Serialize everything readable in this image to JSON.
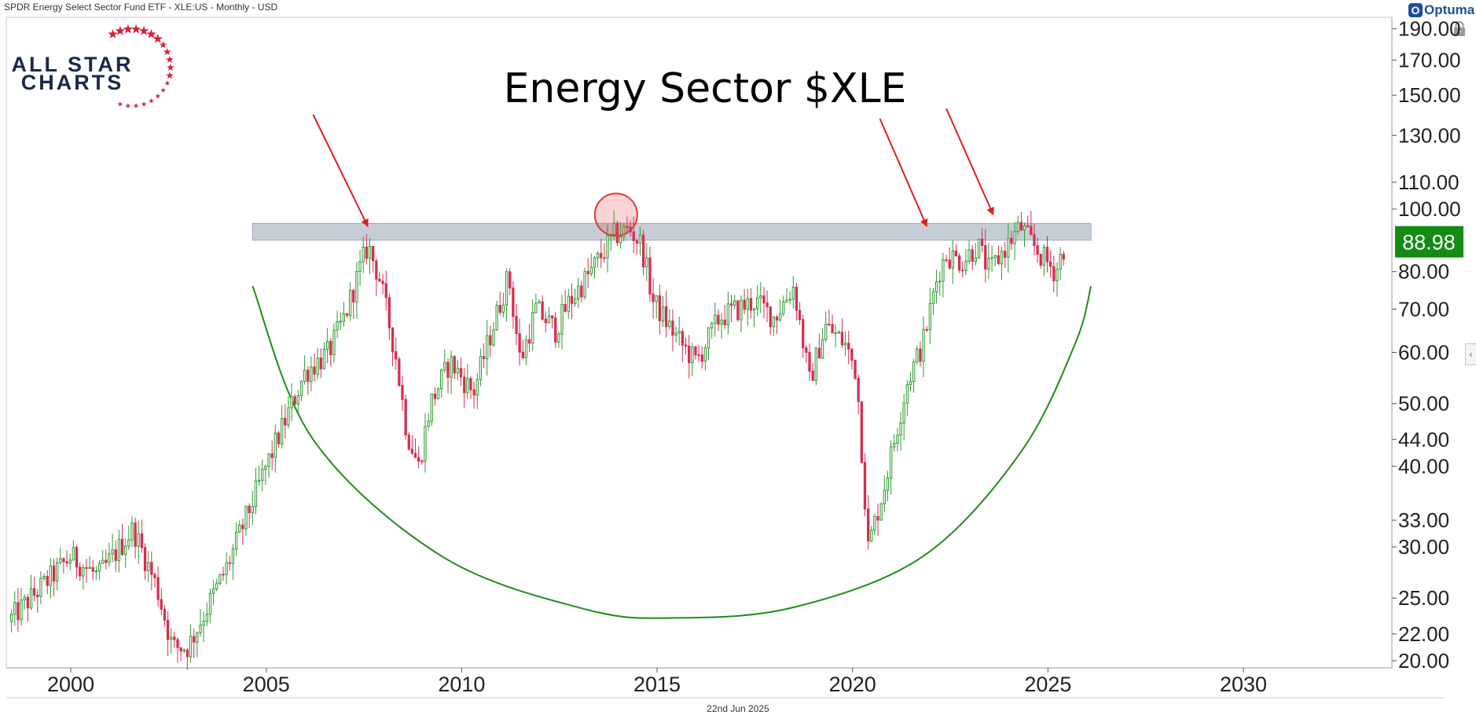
{
  "header": {
    "title": "SPDR Energy Select Sector Fund ETF - XLE:US - Monthly - USD"
  },
  "brand": {
    "optuma_mark": "O",
    "optuma_word": "Optuma",
    "optuma_color": "#1f4e9a",
    "logo_line1": "ALL STAR",
    "logo_line2": "CHARTS",
    "logo_text_color": "#1a2a4a",
    "logo_star_color": "#d9213a"
  },
  "icons": {
    "lock": "lock-icon",
    "collapse": "chevron-left-icon",
    "collapse_glyph": "‹"
  },
  "footer": {
    "date": "22nd Jun 2025"
  },
  "chart_data": {
    "type": "candlestick",
    "title": "Energy Sector $XLE",
    "xlabel": "",
    "ylabel": "",
    "y_scale": "log",
    "ylim": [
      19.5,
      198
    ],
    "xlim": [
      1998.35,
      2033.8
    ],
    "x_ticks": [
      2000,
      2005,
      2010,
      2015,
      2020,
      2025,
      2030
    ],
    "y_ticks": [
      20,
      22,
      25,
      30,
      33,
      40,
      44,
      50,
      60,
      70,
      80,
      100,
      110,
      130,
      150,
      170,
      190
    ],
    "y_tick_labels": [
      "20.00",
      "22.00",
      "25.00",
      "30.00",
      "33.00",
      "40.00",
      "44.00",
      "50.00",
      "60.00",
      "70.00",
      "80.00",
      "100.00",
      "110.00",
      "130.00",
      "150.00",
      "170.00",
      "190.00"
    ],
    "last_price": 88.98,
    "last_price_label": "88.98",
    "up_color": "#2e9a2e",
    "down_color": "#d62d52",
    "last_price_color": "#148c14",
    "resistance_zone": {
      "x_start": 2004.65,
      "x_end": 2026.1,
      "y_low": 89.5,
      "y_high": 95,
      "color": "#b4bcc8"
    },
    "highlight_circle": {
      "x": 2013.95,
      "y": 98,
      "color": "#e03a3a"
    },
    "arrows": [
      {
        "from": [
          2006.2,
          140
        ],
        "to": [
          2007.6,
          94
        ]
      },
      {
        "from": [
          2020.7,
          138
        ],
        "to": [
          2021.9,
          94
        ]
      },
      {
        "from": [
          2022.4,
          143
        ],
        "to": [
          2023.6,
          98
        ]
      }
    ],
    "arrow_color": "#e01e1e",
    "saucer_curve": {
      "points": [
        [
          2004.65,
          76
        ],
        [
          2006.2,
          44
        ],
        [
          2009.5,
          29
        ],
        [
          2013.2,
          24
        ],
        [
          2015.5,
          23.3
        ],
        [
          2018.5,
          24.2
        ],
        [
          2021.8,
          29
        ],
        [
          2024.3,
          42
        ],
        [
          2025.7,
          62
        ],
        [
          2026.1,
          76
        ]
      ],
      "color": "#1e8c1e"
    },
    "series": [
      {
        "x": [
          1998.4,
          2000.0,
          2000.7,
          2001.6,
          2002.2,
          2002.6,
          2003.0,
          2004.0,
          2005.0,
          2006.0,
          2006.6,
          2007.0,
          2007.6,
          2007.9,
          2008.3,
          2008.6,
          2008.9,
          2009.2,
          2009.7,
          2010.3,
          2010.6,
          2011.2,
          2011.5,
          2011.9,
          2012.4,
          2012.7,
          2013.3,
          2013.9,
          2014.3,
          2014.6,
          2014.9,
          2015.6,
          2016.0,
          2016.6,
          2017.5,
          2018.0,
          2018.5,
          2018.9,
          2019.3,
          2019.8,
          2020.1,
          2020.4,
          2020.8,
          2021.0,
          2021.4,
          2021.8,
          2022.2,
          2022.4,
          2022.8,
          2023.2,
          2023.5,
          2023.9,
          2024.3,
          2024.5,
          2024.8,
          2025.2,
          2025.45
        ],
        "values": [
          23,
          29,
          27,
          32,
          26,
          21,
          21,
          28,
          40,
          56,
          60,
          68,
          88,
          78,
          60,
          45,
          40,
          50,
          58,
          52,
          60,
          79,
          58,
          70,
          65,
          71,
          80,
          91,
          93,
          88,
          72,
          62,
          58,
          68,
          72,
          68,
          76,
          54,
          66,
          62,
          56,
          30,
          37,
          42,
          54,
          62,
          80,
          85,
          83,
          88,
          80,
          87,
          94,
          90,
          85,
          80,
          89
        ]
      }
    ]
  }
}
